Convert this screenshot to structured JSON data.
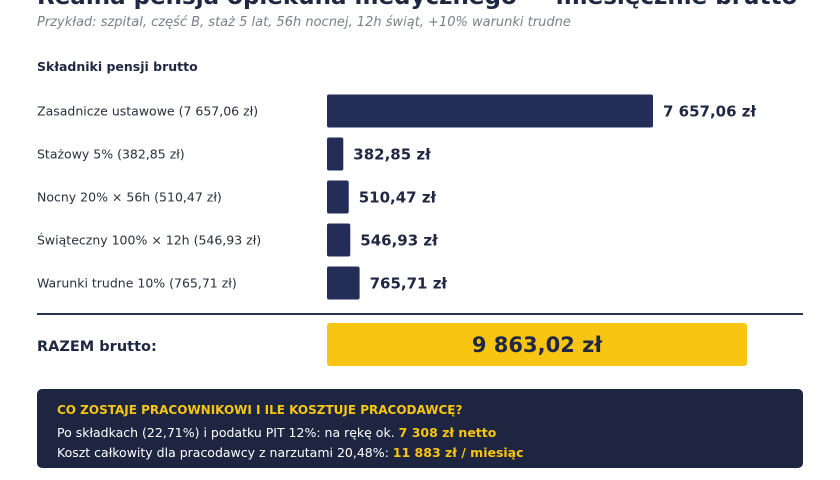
{
  "header": {
    "title": "Realna pensja opiekuna medycznego — miesięcznie brutto",
    "subtitle": "Przykład: szpital, część B, staż 5 lat, 56h nocnej, 12h świąt, +10% warunki trudne"
  },
  "section_title": "Składniki pensji brutto",
  "colors": {
    "bar": "#242d58",
    "total_bg": "#f8c512",
    "info_bg": "#1d2541",
    "highlight": "#f8c512"
  },
  "chart_data": {
    "type": "bar",
    "orientation": "horizontal",
    "title": "Składniki pensji brutto",
    "categories": [
      "Zasadnicze ustawowe (7 657,06 zł)",
      "Stażowy 5% (382,85 zł)",
      "Nocny 20% × 56h (510,47 zł)",
      "Świąteczny 100% × 12h (546,93 zł)",
      "Warunki trudne 10% (765,71 zł)"
    ],
    "values": [
      7657.06,
      382.85,
      510.47,
      546.93,
      765.71
    ],
    "value_labels": [
      "7 657,06 zł",
      "382,85 zł",
      "510,47 zł",
      "546,93 zł",
      "765,71 zł"
    ],
    "grid": false
  },
  "total": {
    "label": "RAZEM brutto:",
    "value": "9 863,02 zł"
  },
  "info": {
    "title": "CO ZOSTAJE PRACOWNIKOWI I ILE KOSZTUJE PRACODAWCĘ?",
    "line1_text": "Po składkach (22,71%) i podatku PIT 12%: na rękę ok. ",
    "line1_value": "7 308 zł netto",
    "line2_text": "Koszt całkowity dla pracodawcy z narzutami 20,48%: ",
    "line2_value": "11 883 zł / miesiąc"
  }
}
